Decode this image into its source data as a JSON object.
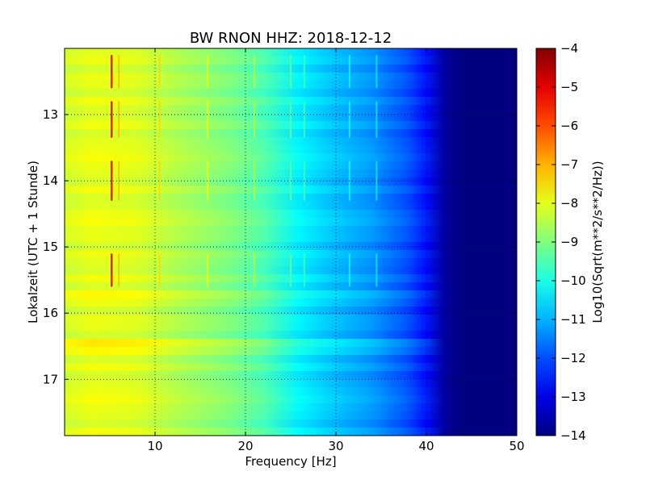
{
  "chart_data": {
    "type": "heatmap",
    "title": "BW RNON HHZ: 2018-12-12",
    "xlabel": "Frequency [Hz]",
    "ylabel": "Lokalzeit (UTC + 1 Stunde)",
    "xlim": [
      0,
      50
    ],
    "ylim": [
      12.0,
      17.85
    ],
    "y_inverted": true,
    "x_ticks": [
      10,
      20,
      30,
      40,
      50
    ],
    "y_ticks": [
      13,
      14,
      15,
      16,
      17
    ],
    "grid": true,
    "colormap": "jet",
    "colorbar": {
      "label": "Log10(Sqrt(m**2/s**2/Hz))",
      "range": [
        -14,
        -4
      ],
      "ticks": [
        -4,
        -5,
        -6,
        -7,
        -8,
        -9,
        -10,
        -11,
        -12,
        -13,
        -14
      ]
    },
    "spectrum_profile": [
      {
        "freq_hz": 0,
        "log10_psd": -8.2
      },
      {
        "freq_hz": 3,
        "log10_psd": -8.0
      },
      {
        "freq_hz": 8,
        "log10_psd": -8.1
      },
      {
        "freq_hz": 12,
        "log10_psd": -8.5
      },
      {
        "freq_hz": 18,
        "log10_psd": -9.0
      },
      {
        "freq_hz": 22,
        "log10_psd": -9.5
      },
      {
        "freq_hz": 26,
        "log10_psd": -10.4
      },
      {
        "freq_hz": 30,
        "log10_psd": -10.9
      },
      {
        "freq_hz": 34,
        "log10_psd": -11.3
      },
      {
        "freq_hz": 38,
        "log10_psd": -12.0
      },
      {
        "freq_hz": 40,
        "log10_psd": -12.6
      },
      {
        "freq_hz": 42,
        "log10_psd": -13.7
      },
      {
        "freq_hz": 44,
        "log10_psd": -14.0
      },
      {
        "freq_hz": 50,
        "log10_psd": -14.0
      }
    ],
    "spectral_lines_hz": [
      5.2,
      6.0,
      10.5,
      15.8,
      21.0,
      25.0,
      26.5,
      31.5,
      34.5
    ],
    "time_features": [
      {
        "time": 13.65,
        "type": "broadband"
      },
      {
        "time": 14.6,
        "type": "broadband"
      },
      {
        "time": 15.75,
        "type": "broadband"
      },
      {
        "time": 16.5,
        "type": "broadband"
      },
      {
        "time": 17.35,
        "type": "broadband"
      }
    ]
  }
}
